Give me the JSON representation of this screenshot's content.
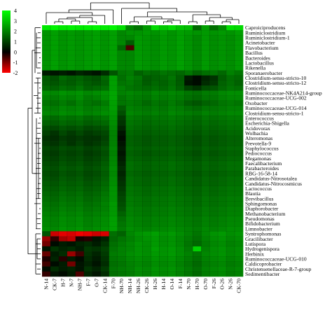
{
  "chart_data": {
    "type": "heatmap",
    "color_scale": {
      "min": -2,
      "max": 4,
      "ticks": [
        4,
        3,
        2,
        1,
        0,
        -1,
        -2
      ],
      "colors": [
        "#ff0000",
        "#000000",
        "#00ff00"
      ]
    },
    "grid": false,
    "legend_position": "top-left",
    "columns": [
      "N-14",
      "CK-7",
      "H-7",
      "N-7",
      "NH-7",
      "F-7",
      "O-7",
      "CK-14",
      "F-70",
      "NH-70",
      "NH-14",
      "NH-26",
      "CK-26",
      "H-26",
      "H-14",
      "O-14",
      "F-14",
      "N-70",
      "H-70",
      "O-70",
      "F-26",
      "O-26",
      "N-26",
      "CK-70"
    ],
    "rows": [
      "Caproiciproducens",
      "Ruminiclostridium",
      "Ruminiclostridium-1",
      "Acinetobacter",
      "Flavobacterium",
      "Bacillus",
      "Bacteroides",
      "Lactobacillus",
      "Rikenella",
      "Sporanaerobacter",
      "Clostridium-sensu-stricto-10",
      "Clostridium-sensu-stricto-12",
      "Fonticella",
      "Ruminococcaceae-NK4A214-group",
      "Ruminococcaceae-UCG-002",
      "Oxobacter",
      "Ruminococcaceae-UCG-014",
      "Clostridium-sensu-stricto-1",
      "Enterococcus",
      "Escherichia-Shigella",
      "Acidovorax",
      "Wolbachia",
      "Alteromonas",
      "Prevotella-9",
      "Staphylococcus",
      "Pediococcus",
      "Megamonas",
      "Faecalibacterium",
      "Parabacteroides",
      "RBG-16-58-14",
      "Candidatus-Nitrosotalea",
      "Candidatus-Nitrocosmicus",
      "Lactococcus",
      "Blautia",
      "Brevibacillus",
      "Sphingomonas",
      "Diaphorobacter",
      "Methanobacterium",
      "Pseudomonas",
      "Bifidobacterium",
      "Limnobacter",
      "Syntrophomonas",
      "Gracilibacter",
      "Lutispora",
      "Hydrogenispora",
      "Herbinix",
      "Ruminococcaceae-UCG-010",
      "Caldicoprobacter",
      "Christensenellaceae-R-7-group",
      "Sedimentibacter"
    ],
    "values": [
      [
        3.6,
        3.8,
        3.6,
        3.7,
        3.6,
        3.7,
        3.8,
        3.6,
        3.8,
        3.4,
        1.9,
        1.6,
        2.2,
        3.3,
        3.0,
        3.3,
        2.9,
        2.8,
        1.4,
        2.3,
        1.5,
        2.0,
        3.4,
        3.3
      ],
      [
        2.1,
        2.3,
        2.1,
        2.2,
        2.1,
        2.2,
        2.3,
        2.1,
        2.3,
        1.9,
        2.1,
        2.1,
        2.2,
        2.1,
        2.3,
        2.1,
        2.3,
        2.2,
        2.1,
        2.2,
        2.1,
        2.2,
        2.1,
        2.3
      ],
      [
        2.1,
        2.3,
        2.1,
        2.2,
        2.1,
        2.2,
        2.3,
        2.1,
        2.3,
        1.9,
        1.9,
        2.2,
        2.1,
        2.0,
        2.2,
        2.1,
        2.3,
        2.1,
        1.9,
        2.2,
        2.0,
        2.1,
        2.0,
        2.2
      ],
      [
        2.1,
        2.3,
        2.1,
        2.2,
        2.1,
        2.2,
        2.3,
        2.1,
        2.3,
        1.9,
        1.2,
        2.2,
        2.1,
        2.0,
        2.2,
        2.1,
        2.3,
        2.1,
        1.9,
        2.2,
        2.0,
        2.1,
        2.0,
        2.2
      ],
      [
        2.1,
        2.3,
        2.1,
        2.2,
        2.1,
        2.2,
        2.3,
        2.1,
        2.3,
        1.4,
        -0.6,
        2.2,
        2.1,
        2.0,
        2.2,
        2.1,
        2.3,
        2.1,
        1.9,
        2.2,
        2.0,
        2.1,
        2.0,
        2.2
      ],
      [
        2.1,
        2.3,
        2.1,
        2.2,
        2.1,
        2.2,
        2.3,
        2.1,
        2.3,
        1.9,
        1.9,
        2.2,
        2.1,
        2.0,
        2.2,
        2.1,
        2.3,
        2.1,
        1.9,
        2.2,
        2.0,
        2.1,
        2.0,
        2.2
      ],
      [
        2.1,
        2.3,
        2.1,
        2.2,
        2.1,
        2.2,
        2.3,
        2.1,
        2.3,
        1.9,
        1.9,
        2.2,
        2.1,
        2.0,
        2.2,
        2.1,
        2.3,
        2.1,
        1.9,
        2.2,
        2.0,
        2.1,
        2.0,
        2.2
      ],
      [
        2.1,
        2.3,
        2.1,
        2.2,
        2.1,
        2.2,
        2.3,
        2.1,
        2.3,
        1.9,
        1.9,
        2.2,
        2.1,
        2.0,
        2.2,
        2.1,
        2.3,
        2.1,
        1.9,
        2.2,
        2.0,
        2.1,
        2.0,
        2.2
      ],
      [
        2.1,
        2.3,
        2.1,
        2.2,
        2.1,
        2.2,
        2.3,
        2.1,
        2.3,
        1.9,
        1.9,
        2.2,
        2.1,
        2.0,
        2.2,
        2.1,
        2.3,
        2.1,
        1.9,
        2.2,
        2.0,
        2.1,
        2.0,
        2.2
      ],
      [
        0.3,
        0.2,
        0.3,
        0.2,
        0.4,
        0.3,
        0.2,
        0.5,
        1.1,
        1.6,
        1.7,
        1.3,
        1.5,
        1.4,
        1.6,
        1.5,
        1.4,
        1.6,
        1.3,
        1.5,
        1.6,
        1.4,
        1.8,
        1.6
      ],
      [
        1.2,
        1.0,
        1.4,
        1.2,
        1.3,
        1.1,
        1.0,
        1.4,
        2.3,
        1.5,
        1.8,
        1.6,
        1.2,
        1.3,
        1.4,
        1.6,
        1.2,
        0.3,
        0.1,
        0.4,
        0.6,
        1.2,
        1.5,
        1.4
      ],
      [
        1.2,
        1.1,
        1.3,
        1.2,
        1.4,
        1.2,
        1.1,
        1.3,
        2.3,
        1.6,
        1.7,
        1.5,
        1.2,
        1.4,
        1.3,
        1.5,
        1.2,
        0.2,
        0.1,
        0.5,
        0.7,
        1.3,
        1.5,
        1.3
      ],
      [
        1.4,
        1.3,
        1.5,
        1.4,
        1.6,
        1.3,
        1.4,
        1.5,
        2.3,
        1.8,
        1.6,
        1.5,
        1.4,
        1.5,
        1.4,
        1.6,
        1.3,
        0.8,
        0.6,
        1.0,
        1.1,
        1.4,
        1.6,
        1.5
      ],
      [
        2.0,
        1.9,
        2.1,
        2.0,
        2.1,
        1.9,
        2.0,
        2.1,
        2.4,
        1.8,
        1.9,
        1.8,
        1.7,
        1.9,
        1.8,
        1.9,
        1.8,
        1.6,
        1.5,
        1.7,
        1.7,
        1.9,
        2.0,
        2.0
      ],
      [
        1.8,
        1.7,
        1.9,
        1.8,
        2.0,
        1.7,
        1.8,
        2.0,
        2.4,
        1.6,
        1.8,
        1.7,
        1.6,
        1.8,
        1.7,
        1.8,
        1.7,
        1.5,
        1.4,
        1.6,
        1.6,
        1.8,
        1.9,
        1.9
      ],
      [
        1.6,
        1.5,
        1.7,
        1.5,
        1.8,
        1.6,
        1.5,
        1.7,
        2.3,
        1.6,
        1.7,
        1.6,
        1.4,
        1.6,
        1.5,
        1.7,
        1.5,
        1.2,
        1.1,
        1.3,
        1.4,
        1.6,
        1.7,
        1.6
      ],
      [
        1.8,
        1.7,
        1.9,
        1.8,
        1.9,
        1.7,
        1.8,
        1.9,
        2.3,
        1.2,
        1.8,
        1.7,
        1.6,
        1.7,
        1.6,
        1.8,
        1.7,
        1.5,
        1.4,
        1.6,
        1.6,
        1.7,
        1.8,
        1.8
      ],
      [
        1.9,
        1.8,
        2.0,
        1.9,
        2.0,
        1.8,
        1.9,
        2.0,
        2.2,
        1.0,
        1.9,
        1.8,
        1.7,
        1.8,
        1.7,
        1.9,
        1.8,
        1.7,
        1.6,
        1.8,
        1.7,
        1.8,
        1.9,
        1.9
      ],
      [
        1.5,
        1.4,
        1.6,
        1.5,
        1.6,
        1.4,
        1.5,
        1.6,
        2.1,
        0.7,
        1.7,
        1.6,
        1.5,
        1.6,
        1.6,
        1.7,
        1.6,
        1.5,
        1.4,
        1.6,
        1.5,
        1.6,
        1.7,
        1.7
      ],
      [
        1.3,
        1.2,
        1.4,
        1.3,
        1.4,
        1.2,
        1.3,
        1.4,
        2.0,
        0.6,
        1.6,
        1.5,
        1.4,
        1.5,
        1.5,
        1.6,
        1.5,
        1.4,
        1.3,
        1.5,
        1.4,
        1.5,
        1.6,
        1.6
      ],
      [
        1.0,
        0.9,
        1.1,
        1.0,
        1.1,
        0.9,
        1.0,
        1.1,
        1.9,
        0.4,
        1.5,
        1.4,
        1.3,
        1.4,
        1.4,
        1.5,
        1.4,
        1.3,
        1.2,
        1.4,
        1.3,
        1.4,
        1.5,
        1.5
      ],
      [
        0.8,
        0.6,
        0.9,
        0.7,
        0.9,
        0.7,
        0.8,
        0.9,
        1.8,
        0.2,
        1.4,
        1.3,
        1.2,
        1.3,
        1.3,
        1.4,
        1.3,
        1.2,
        1.1,
        1.3,
        1.2,
        1.3,
        1.4,
        1.4
      ],
      [
        0.6,
        0.5,
        0.7,
        0.6,
        0.7,
        0.6,
        0.6,
        0.8,
        1.8,
        0.1,
        1.3,
        1.2,
        1.1,
        1.2,
        1.2,
        1.3,
        1.2,
        1.1,
        1.0,
        1.2,
        1.1,
        1.2,
        1.3,
        1.3
      ],
      [
        0.7,
        0.6,
        0.8,
        0.6,
        0.8,
        0.6,
        0.7,
        0.9,
        1.8,
        0.2,
        1.3,
        1.2,
        1.1,
        1.2,
        1.2,
        1.3,
        1.2,
        1.1,
        1.0,
        1.2,
        1.1,
        1.2,
        1.3,
        1.3
      ],
      [
        0.9,
        0.8,
        1.0,
        0.9,
        1.0,
        0.8,
        0.9,
        1.1,
        1.9,
        0.3,
        1.4,
        1.3,
        1.2,
        1.3,
        1.3,
        1.4,
        1.3,
        1.2,
        1.1,
        1.3,
        1.2,
        1.3,
        1.4,
        1.4
      ],
      [
        0.8,
        0.7,
        0.9,
        0.8,
        0.9,
        0.7,
        0.8,
        1.0,
        1.8,
        0.2,
        1.3,
        1.2,
        1.1,
        1.2,
        1.2,
        1.3,
        1.2,
        1.1,
        1.0,
        1.2,
        1.1,
        1.2,
        1.3,
        1.3
      ],
      [
        0.9,
        0.8,
        1.0,
        0.9,
        1.0,
        0.8,
        0.9,
        1.1,
        1.9,
        0.3,
        1.4,
        1.3,
        1.2,
        1.3,
        1.3,
        1.4,
        1.3,
        1.2,
        1.1,
        1.3,
        1.2,
        1.3,
        1.4,
        1.4
      ],
      [
        1.0,
        0.9,
        1.1,
        1.0,
        1.1,
        0.9,
        1.0,
        1.2,
        1.9,
        0.4,
        1.5,
        1.4,
        1.3,
        1.4,
        1.4,
        1.5,
        1.4,
        1.3,
        1.2,
        1.4,
        1.3,
        1.4,
        1.5,
        1.5
      ],
      [
        1.1,
        1.0,
        1.2,
        1.1,
        1.2,
        1.0,
        1.1,
        1.3,
        2.0,
        0.5,
        1.5,
        1.4,
        1.3,
        1.4,
        1.4,
        1.5,
        1.4,
        1.3,
        1.2,
        1.4,
        1.3,
        1.4,
        1.5,
        1.5
      ],
      [
        1.0,
        0.9,
        1.1,
        1.0,
        1.1,
        0.9,
        1.0,
        1.2,
        1.9,
        0.4,
        1.4,
        1.3,
        1.2,
        1.3,
        1.3,
        1.4,
        1.3,
        1.2,
        1.1,
        1.3,
        1.2,
        1.3,
        1.4,
        1.4
      ],
      [
        1.1,
        1.0,
        1.2,
        1.1,
        1.2,
        1.0,
        1.1,
        1.3,
        2.0,
        0.5,
        1.5,
        1.4,
        1.3,
        1.4,
        1.4,
        1.5,
        1.4,
        1.3,
        1.2,
        1.4,
        1.3,
        1.4,
        1.5,
        1.5
      ],
      [
        1.2,
        1.1,
        1.3,
        1.2,
        1.3,
        1.1,
        1.2,
        1.4,
        2.0,
        0.6,
        1.5,
        1.4,
        1.3,
        1.4,
        1.4,
        1.5,
        1.4,
        1.3,
        1.2,
        1.4,
        1.3,
        1.4,
        1.5,
        1.5
      ],
      [
        1.3,
        1.2,
        1.4,
        1.3,
        1.4,
        1.2,
        1.3,
        1.5,
        2.1,
        0.7,
        1.6,
        1.5,
        1.4,
        1.5,
        1.5,
        1.6,
        1.5,
        1.4,
        1.3,
        1.5,
        1.4,
        1.5,
        1.6,
        1.6
      ],
      [
        1.4,
        1.3,
        1.5,
        1.4,
        1.5,
        1.3,
        1.4,
        1.6,
        2.1,
        0.8,
        1.6,
        1.5,
        1.4,
        1.5,
        1.5,
        1.6,
        1.5,
        1.4,
        1.3,
        1.5,
        1.4,
        1.5,
        1.6,
        1.6
      ],
      [
        1.5,
        1.4,
        1.6,
        1.5,
        1.6,
        1.4,
        1.5,
        1.7,
        2.1,
        0.9,
        1.7,
        1.6,
        1.5,
        1.6,
        1.6,
        1.7,
        1.6,
        1.5,
        1.4,
        1.6,
        1.5,
        1.6,
        1.7,
        1.7
      ],
      [
        1.6,
        1.5,
        1.7,
        1.6,
        1.7,
        1.5,
        1.6,
        1.8,
        2.2,
        1.0,
        1.7,
        1.6,
        1.5,
        1.6,
        1.6,
        1.7,
        1.6,
        1.5,
        1.4,
        1.6,
        1.5,
        1.6,
        1.7,
        1.7
      ],
      [
        1.7,
        1.6,
        1.8,
        1.7,
        1.8,
        1.6,
        1.7,
        1.8,
        2.2,
        1.1,
        1.8,
        1.7,
        1.6,
        1.7,
        1.7,
        1.8,
        1.7,
        1.6,
        1.5,
        1.7,
        1.6,
        1.7,
        1.8,
        1.8
      ],
      [
        1.8,
        1.7,
        1.9,
        1.8,
        1.9,
        1.7,
        1.8,
        1.9,
        2.2,
        1.3,
        1.8,
        1.7,
        1.6,
        1.7,
        1.7,
        1.8,
        1.7,
        1.6,
        1.5,
        1.7,
        1.6,
        1.7,
        1.8,
        1.8
      ],
      [
        1.9,
        1.8,
        2.0,
        1.9,
        2.0,
        1.8,
        1.9,
        2.0,
        2.3,
        1.5,
        1.9,
        1.8,
        1.7,
        1.8,
        1.8,
        1.9,
        1.8,
        1.7,
        1.6,
        1.8,
        1.7,
        1.8,
        1.9,
        1.9
      ],
      [
        1.9,
        1.8,
        2.0,
        1.9,
        2.0,
        1.8,
        1.9,
        2.0,
        2.3,
        1.6,
        1.9,
        1.8,
        1.7,
        1.8,
        1.8,
        1.9,
        1.8,
        1.7,
        1.6,
        1.8,
        1.7,
        1.8,
        1.9,
        1.9
      ],
      [
        2.0,
        1.9,
        2.1,
        2.0,
        2.1,
        1.9,
        2.0,
        2.1,
        2.3,
        1.7,
        2.0,
        1.9,
        1.8,
        1.9,
        1.9,
        2.0,
        1.9,
        1.8,
        1.7,
        1.9,
        1.8,
        1.9,
        2.0,
        2.0
      ],
      [
        1.1,
        -1.6,
        -1.8,
        -1.7,
        -1.9,
        -1.8,
        -1.6,
        -1.7,
        1.5,
        1.3,
        1.9,
        2.1,
        2.2,
        2.3,
        2.1,
        2.2,
        2.0,
        1.8,
        1.6,
        1.9,
        2.1,
        2.2,
        2.0,
        2.1
      ],
      [
        -1.2,
        -0.4,
        -1.3,
        -1.5,
        -0.2,
        -0.3,
        0.2,
        0.4,
        1.4,
        1.6,
        1.8,
        2.0,
        2.1,
        2.2,
        2.0,
        2.1,
        1.9,
        1.7,
        1.5,
        1.8,
        2.0,
        2.1,
        1.9,
        2.0
      ],
      [
        -0.9,
        0.1,
        0.3,
        0.2,
        0.4,
        0.5,
        0.3,
        0.6,
        1.5,
        1.7,
        1.9,
        2.1,
        2.0,
        2.2,
        2.0,
        2.1,
        1.9,
        1.6,
        1.4,
        1.7,
        1.9,
        2.0,
        1.8,
        1.9
      ],
      [
        0.2,
        0.6,
        0.4,
        0.5,
        0.3,
        0.7,
        0.6,
        0.8,
        1.6,
        1.8,
        1.9,
        2.1,
        2.0,
        2.3,
        2.1,
        2.2,
        2.0,
        1.7,
        3.2,
        1.8,
        2.0,
        2.1,
        1.9,
        2.0
      ],
      [
        -0.8,
        0.3,
        0.5,
        -1.2,
        -0.5,
        0.6,
        0.4,
        0.7,
        1.7,
        1.8,
        2.0,
        2.1,
        2.0,
        2.2,
        2.1,
        2.2,
        2.0,
        1.8,
        1.6,
        1.9,
        2.0,
        2.1,
        1.9,
        2.0
      ],
      [
        -0.2,
        0.4,
        -0.3,
        0.3,
        0.1,
        0.5,
        0.3,
        0.6,
        1.6,
        1.7,
        1.9,
        2.0,
        1.9,
        2.1,
        2.0,
        2.1,
        1.9,
        1.7,
        1.5,
        1.8,
        1.9,
        2.0,
        1.8,
        1.9
      ],
      [
        -0.5,
        0.1,
        0.3,
        -0.9,
        0.2,
        0.4,
        0.2,
        0.5,
        1.5,
        1.6,
        1.8,
        1.9,
        1.8,
        2.0,
        1.9,
        2.0,
        1.8,
        1.6,
        1.4,
        1.7,
        1.8,
        1.9,
        1.7,
        1.8
      ],
      [
        0.1,
        0.5,
        0.3,
        0.4,
        0.2,
        0.6,
        0.4,
        0.7,
        1.6,
        1.7,
        1.8,
        2.0,
        1.9,
        2.1,
        2.0,
        2.1,
        1.9,
        1.7,
        1.5,
        1.8,
        1.9,
        2.0,
        1.8,
        1.9
      ],
      [
        -0.4,
        0.2,
        0.1,
        0.3,
        -0.6,
        0.4,
        0.2,
        0.5,
        1.5,
        1.6,
        1.7,
        1.9,
        1.8,
        2.0,
        1.9,
        2.0,
        1.8,
        1.6,
        1.4,
        1.7,
        1.8,
        1.9,
        1.7,
        1.8
      ]
    ]
  }
}
